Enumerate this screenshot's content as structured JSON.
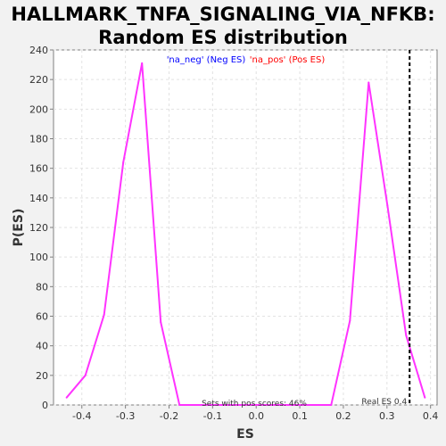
{
  "title_lines": [
    "HALLMARK_TNFA_SIGNALING_VIA_NFKB:",
    "Random ES distribution"
  ],
  "chart_data": {
    "type": "line",
    "title": "HALLMARK_TNFA_SIGNALING_VIA_NFKB: Random ES distribution",
    "xlabel": "ES",
    "ylabel": "P(ES)",
    "xlim": [
      -0.465,
      0.415
    ],
    "ylim": [
      0,
      240
    ],
    "xticks": [
      "-0.4",
      "-0.3",
      "-0.2",
      "-0.1",
      "0.0",
      "0.1",
      "0.2",
      "0.3",
      "0.4"
    ],
    "xtick_values": [
      -0.4,
      -0.3,
      -0.2,
      -0.1,
      0.0,
      0.1,
      0.2,
      0.3,
      0.4
    ],
    "yticks": [
      "0",
      "20",
      "40",
      "60",
      "80",
      "100",
      "120",
      "140",
      "160",
      "180",
      "200",
      "220",
      "240"
    ],
    "ytick_values": [
      0,
      20,
      40,
      60,
      80,
      100,
      120,
      140,
      160,
      180,
      200,
      220,
      240
    ],
    "grid": true,
    "legend": [
      {
        "label": "'na_neg' (Neg ES)",
        "color": "#0000ff"
      },
      {
        "label": "'na_pos' (Pos ES)",
        "color": "#ff0000"
      }
    ],
    "series": [
      {
        "color": "#ff33ff",
        "x": [
          -0.435,
          -0.392,
          -0.349,
          -0.305,
          -0.262,
          -0.219,
          -0.176,
          0.172,
          0.215,
          0.258,
          0.301,
          0.344,
          0.387
        ],
        "y": [
          5,
          20,
          61,
          164,
          231,
          56,
          0,
          0,
          57,
          218,
          135,
          47,
          5
        ]
      }
    ],
    "reference_line": {
      "x": 0.352,
      "style": "dashed",
      "color": "#000000",
      "label": "Real ES 0.4"
    },
    "annotation": "Sets with pos scores: 46%"
  }
}
